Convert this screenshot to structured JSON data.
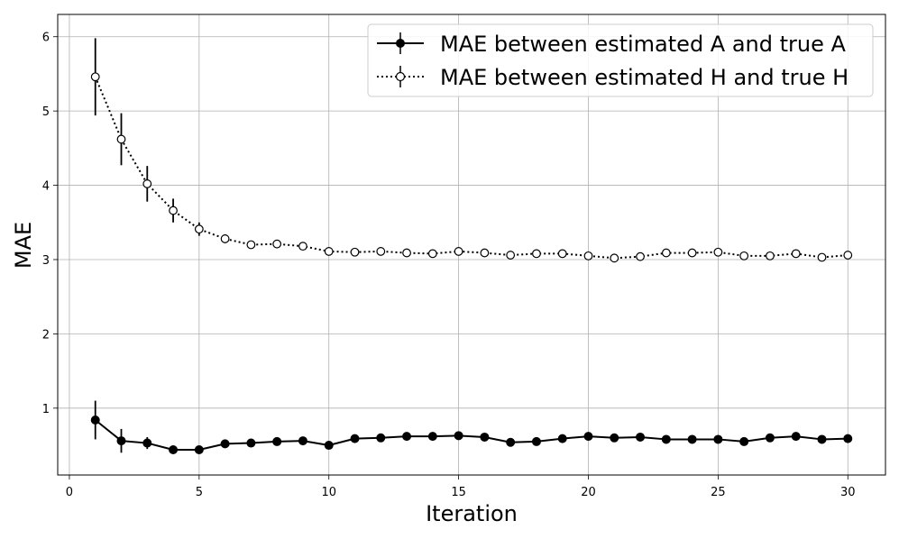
{
  "chart_data": {
    "type": "line",
    "title": "",
    "xlabel": "Iteration",
    "ylabel": "MAE",
    "xlim": [
      -0.45,
      31.45
    ],
    "ylim": [
      0.1,
      6.3
    ],
    "xticks": [
      0,
      5,
      10,
      15,
      20,
      25,
      30
    ],
    "xtick_labels": [
      "0",
      "5",
      "10",
      "15",
      "20",
      "25",
      "30"
    ],
    "yticks": [
      1,
      2,
      3,
      4,
      5,
      6
    ],
    "ytick_labels": [
      "1",
      "2",
      "3",
      "4",
      "5",
      "6"
    ],
    "grid": true,
    "legend_position": "top-right",
    "x": [
      1,
      2,
      3,
      4,
      5,
      6,
      7,
      8,
      9,
      10,
      11,
      12,
      13,
      14,
      15,
      16,
      17,
      18,
      19,
      20,
      21,
      22,
      23,
      24,
      25,
      26,
      27,
      28,
      29,
      30
    ],
    "series": [
      {
        "name": "MAE between estimated A and true A",
        "style": "solid",
        "marker": "filled-circle",
        "color": "#000000",
        "values": [
          0.84,
          0.56,
          0.53,
          0.44,
          0.44,
          0.52,
          0.53,
          0.55,
          0.56,
          0.5,
          0.59,
          0.6,
          0.62,
          0.62,
          0.63,
          0.61,
          0.54,
          0.55,
          0.59,
          0.62,
          0.6,
          0.61,
          0.58,
          0.58,
          0.58,
          0.55,
          0.6,
          0.62,
          0.58,
          0.59
        ],
        "errors": [
          0.26,
          0.16,
          0.08,
          0.05,
          0.03,
          0.05,
          0.03,
          0.03,
          0.04,
          0.04,
          0.03,
          0.03,
          0.03,
          0.03,
          0.04,
          0.03,
          0.03,
          0.03,
          0.03,
          0.04,
          0.03,
          0.03,
          0.03,
          0.03,
          0.03,
          0.03,
          0.03,
          0.04,
          0.03,
          0.03
        ]
      },
      {
        "name": "MAE between estimated H and true H",
        "style": "dotted",
        "marker": "open-circle",
        "color": "#000000",
        "values": [
          5.46,
          4.62,
          4.02,
          3.66,
          3.41,
          3.28,
          3.2,
          3.21,
          3.18,
          3.11,
          3.1,
          3.11,
          3.09,
          3.08,
          3.11,
          3.09,
          3.06,
          3.08,
          3.08,
          3.05,
          3.02,
          3.04,
          3.09,
          3.09,
          3.1,
          3.05,
          3.05,
          3.08,
          3.03,
          3.06
        ],
        "errors": [
          0.52,
          0.35,
          0.24,
          0.16,
          0.09,
          0.06,
          0.05,
          0.04,
          0.04,
          0.04,
          0.04,
          0.04,
          0.04,
          0.04,
          0.04,
          0.04,
          0.04,
          0.04,
          0.04,
          0.04,
          0.04,
          0.04,
          0.04,
          0.04,
          0.04,
          0.04,
          0.04,
          0.04,
          0.04,
          0.04
        ]
      }
    ]
  }
}
